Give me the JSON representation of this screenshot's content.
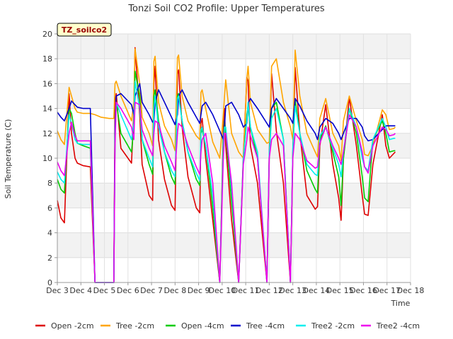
{
  "chart_data": {
    "type": "line",
    "title": "Tonzi Soil CO2 Profile: Upper Temperatures",
    "xlabel": "Time",
    "ylabel": "Soil Temperature (C)",
    "site_label": "TZ_soilco2",
    "ylim": [
      0,
      20
    ],
    "yticks": [
      0,
      2,
      4,
      6,
      8,
      10,
      12,
      14,
      16,
      18,
      20
    ],
    "xlim": [
      3,
      18
    ],
    "xtick_values": [
      3,
      4,
      5,
      6,
      7,
      8,
      9,
      10,
      11,
      12,
      13,
      14,
      15,
      16,
      17,
      18
    ],
    "xtick_labels": [
      "Dec 3",
      "Dec 4",
      "Dec 5",
      "Dec 6",
      "Dec 7",
      "Dec 8",
      "Dec 9",
      "Dec 10",
      "Dec 11",
      "Dec 12",
      "Dec 13",
      "Dec 14",
      "Dec 15",
      "Dec 16",
      "Dec 17",
      "Dec 18"
    ],
    "grid": true,
    "band_background": true,
    "legend_position": "bottom",
    "series": [
      {
        "name": "Open -2cm",
        "color": "#dd0000",
        "x": [
          3.0,
          3.15,
          3.3,
          3.5,
          3.6,
          3.75,
          3.85,
          4.1,
          4.4,
          4.6,
          4.85,
          5.2,
          5.4,
          5.45,
          5.5,
          5.7,
          6.15,
          6.25,
          6.3,
          6.5,
          6.6,
          6.9,
          7.05,
          7.1,
          7.15,
          7.3,
          7.55,
          7.85,
          8.0,
          8.1,
          8.15,
          8.3,
          8.55,
          8.9,
          9.05,
          9.1,
          9.15,
          9.3,
          9.6,
          9.9,
          10.05,
          10.1,
          10.15,
          10.4,
          10.7,
          10.9,
          11.05,
          11.1,
          11.2,
          11.5,
          11.9,
          12.0,
          12.1,
          12.3,
          12.6,
          12.9,
          13.0,
          13.1,
          13.3,
          13.6,
          13.95,
          14.05,
          14.15,
          14.4,
          14.7,
          14.95,
          15.05,
          15.15,
          15.4,
          15.7,
          15.95,
          16.05,
          16.2,
          16.4,
          16.8,
          16.95,
          17.1,
          17.3,
          17.35
        ],
        "values": [
          6.6,
          5.2,
          4.8,
          15.2,
          12.0,
          10.0,
          9.6,
          9.4,
          9.3,
          0,
          0,
          0,
          0,
          14.5,
          15.2,
          10.8,
          9.6,
          13.8,
          18.9,
          13.5,
          9.5,
          7.0,
          6.6,
          16.0,
          17.4,
          11.5,
          8.3,
          6.2,
          5.8,
          16.8,
          17.1,
          12.5,
          8.5,
          6.0,
          5.6,
          12.8,
          13.2,
          10.0,
          5.0,
          0,
          12.2,
          14.0,
          11.0,
          5.0,
          0,
          10.2,
          16.5,
          16.2,
          11.0,
          8.0,
          0,
          10.5,
          16.8,
          12.2,
          8.0,
          0,
          10.7,
          17.3,
          12.0,
          7.0,
          5.9,
          6.1,
          11.0,
          14.3,
          9.5,
          6.8,
          5.0,
          10.0,
          14.9,
          11.0,
          7.0,
          5.5,
          5.4,
          9.5,
          13.5,
          11.0,
          10.0,
          10.4,
          10.5
        ]
      },
      {
        "name": "Tree -2cm",
        "color": "#ffa500",
        "x": [
          3.0,
          3.15,
          3.3,
          3.5,
          3.6,
          3.75,
          3.85,
          4.1,
          4.4,
          4.6,
          4.85,
          5.2,
          5.4,
          5.45,
          5.5,
          5.7,
          6.15,
          6.25,
          6.3,
          6.5,
          6.6,
          6.9,
          7.05,
          7.1,
          7.15,
          7.3,
          7.55,
          7.85,
          8.0,
          8.1,
          8.15,
          8.3,
          8.55,
          8.9,
          9.05,
          9.1,
          9.15,
          9.3,
          9.6,
          9.9,
          10.05,
          10.1,
          10.15,
          10.4,
          10.7,
          10.9,
          11.05,
          11.1,
          11.2,
          11.5,
          11.9,
          12.0,
          12.1,
          12.3,
          12.6,
          12.9,
          13.0,
          13.1,
          13.3,
          13.6,
          13.95,
          14.05,
          14.15,
          14.4,
          14.7,
          14.95,
          15.05,
          15.15,
          15.4,
          15.7,
          15.95,
          16.05,
          16.2,
          16.4,
          16.8,
          16.95,
          17.1,
          17.3,
          17.35
        ],
        "values": [
          12.2,
          11.5,
          11.1,
          15.7,
          15.0,
          14.0,
          13.7,
          13.6,
          13.6,
          13.5,
          13.3,
          13.2,
          13.2,
          16.0,
          16.2,
          15.0,
          13.0,
          14.5,
          18.8,
          16.0,
          13.3,
          12.0,
          11.0,
          17.8,
          18.2,
          14.5,
          12.6,
          11.5,
          10.6,
          18.1,
          18.3,
          15.0,
          13.0,
          11.8,
          11.5,
          15.3,
          15.5,
          14.0,
          11.3,
          10.0,
          13.5,
          15.0,
          16.3,
          12.0,
          10.5,
          10.0,
          16.4,
          17.4,
          14.5,
          12.3,
          11.2,
          11.3,
          17.4,
          18.0,
          14.5,
          12.5,
          11.5,
          18.7,
          15.0,
          12.0,
          10.5,
          10.1,
          13.2,
          14.8,
          12.0,
          11.0,
          9.8,
          13.0,
          15.0,
          13.0,
          11.5,
          10.3,
          10.2,
          11.0,
          13.9,
          13.5,
          12.3,
          12.4,
          12.5
        ]
      },
      {
        "name": "Open -4cm",
        "color": "#00cc00",
        "x": [
          3.0,
          3.15,
          3.3,
          3.5,
          3.6,
          3.75,
          3.85,
          4.1,
          4.4,
          4.6,
          4.85,
          5.2,
          5.4,
          5.45,
          5.5,
          5.7,
          6.15,
          6.25,
          6.3,
          6.5,
          6.6,
          6.9,
          7.05,
          7.1,
          7.15,
          7.3,
          7.55,
          7.85,
          8.0,
          8.1,
          8.15,
          8.3,
          8.55,
          8.9,
          9.05,
          9.1,
          9.15,
          9.3,
          9.6,
          9.9,
          10.05,
          10.1,
          10.15,
          10.4,
          10.7,
          10.9,
          11.05,
          11.1,
          11.2,
          11.5,
          11.9,
          12.0,
          12.1,
          12.3,
          12.6,
          12.9,
          13.0,
          13.1,
          13.3,
          13.6,
          13.95,
          14.05,
          14.15,
          14.4,
          14.7,
          14.95,
          15.05,
          15.15,
          15.4,
          15.7,
          15.95,
          16.05,
          16.2,
          16.4,
          16.8,
          16.95,
          17.1,
          17.3,
          17.35
        ],
        "values": [
          8.3,
          7.5,
          7.2,
          14.0,
          13.6,
          12.0,
          11.2,
          11.0,
          10.8,
          0,
          0,
          0,
          0,
          11.5,
          14.5,
          12.0,
          10.5,
          12.5,
          17.0,
          15.0,
          11.5,
          9.5,
          8.7,
          15.0,
          15.5,
          13.0,
          10.5,
          8.5,
          7.9,
          15.0,
          15.2,
          13.0,
          10.5,
          8.3,
          7.8,
          12.0,
          12.3,
          11.0,
          6.0,
          0,
          11.5,
          13.0,
          12.0,
          6.5,
          0,
          9.8,
          13.5,
          14.2,
          12.5,
          10.0,
          0,
          10.0,
          14.0,
          14.5,
          11.5,
          0,
          10.5,
          14.7,
          12.0,
          9.0,
          7.5,
          7.2,
          11.5,
          12.6,
          10.5,
          8.5,
          6.2,
          10.0,
          14.0,
          12.0,
          8.5,
          6.8,
          6.5,
          11.5,
          13.0,
          12.0,
          10.5,
          10.6,
          10.6
        ]
      },
      {
        "name": "Tree -4cm",
        "color": "#0000cc",
        "x": [
          3.0,
          3.15,
          3.3,
          3.5,
          3.6,
          3.75,
          3.85,
          4.1,
          4.4,
          4.6,
          4.85,
          5.2,
          5.4,
          5.45,
          5.5,
          5.7,
          6.15,
          6.25,
          6.3,
          6.5,
          6.6,
          6.9,
          7.05,
          7.1,
          7.15,
          7.3,
          7.55,
          7.85,
          8.0,
          8.1,
          8.15,
          8.3,
          8.55,
          8.9,
          9.05,
          9.1,
          9.15,
          9.3,
          9.6,
          9.9,
          10.05,
          10.1,
          10.15,
          10.4,
          10.7,
          10.9,
          11.05,
          11.1,
          11.2,
          11.5,
          11.9,
          12.0,
          12.1,
          12.3,
          12.6,
          12.9,
          13.0,
          13.1,
          13.3,
          13.6,
          13.95,
          14.05,
          14.15,
          14.4,
          14.7,
          14.95,
          15.05,
          15.15,
          15.4,
          15.7,
          15.95,
          16.05,
          16.2,
          16.4,
          16.8,
          16.95,
          17.1,
          17.3,
          17.35
        ],
        "values": [
          13.7,
          13.3,
          13.0,
          14.0,
          14.6,
          14.3,
          14.1,
          14.0,
          14.0,
          0,
          0,
          0,
          0,
          12.5,
          15.0,
          15.2,
          14.3,
          13.5,
          15.0,
          16.0,
          14.5,
          13.5,
          12.9,
          13.0,
          14.5,
          15.5,
          14.5,
          13.3,
          12.7,
          13.5,
          15.0,
          15.5,
          14.5,
          13.3,
          12.8,
          13.5,
          14.2,
          14.5,
          13.5,
          12.2,
          11.5,
          12.5,
          14.2,
          14.5,
          13.5,
          12.5,
          12.8,
          14.4,
          14.8,
          14.0,
          12.8,
          12.5,
          14.0,
          14.8,
          14.0,
          13.2,
          12.8,
          14.8,
          14.2,
          13.0,
          12.0,
          11.5,
          12.5,
          13.2,
          12.8,
          12.0,
          11.5,
          12.0,
          13.2,
          13.2,
          12.5,
          11.8,
          11.4,
          11.5,
          12.3,
          12.6,
          12.6,
          12.6,
          12.6
        ]
      },
      {
        "name": "Tree2 -2cm",
        "color": "#00eeee",
        "x": [
          3.0,
          3.15,
          3.3,
          3.5,
          3.6,
          3.75,
          3.85,
          4.1,
          4.4,
          4.6,
          4.85,
          5.2,
          5.4,
          5.45,
          5.5,
          5.7,
          6.15,
          6.25,
          6.3,
          6.5,
          6.6,
          6.9,
          7.05,
          7.1,
          7.15,
          7.3,
          7.55,
          7.85,
          8.0,
          8.1,
          8.15,
          8.3,
          8.55,
          8.9,
          9.05,
          9.1,
          9.15,
          9.3,
          9.6,
          9.9,
          10.05,
          10.1,
          10.15,
          10.4,
          10.7,
          10.9,
          11.05,
          11.1,
          11.2,
          11.5,
          11.9,
          12.0,
          12.1,
          12.3,
          12.6,
          12.9,
          13.0,
          13.1,
          13.3,
          13.6,
          13.95,
          14.05,
          14.15,
          14.4,
          14.7,
          14.95,
          15.05,
          15.15,
          15.4,
          15.7,
          15.95,
          16.05,
          16.2,
          16.4,
          16.8,
          16.95,
          17.1,
          17.3,
          17.35
        ],
        "values": [
          8.9,
          8.3,
          8.0,
          13.5,
          12.8,
          11.5,
          11.2,
          11.1,
          11.1,
          0,
          0,
          0,
          0,
          11.5,
          14.5,
          13.5,
          11.5,
          12.8,
          16.2,
          14.0,
          11.5,
          10.0,
          9.3,
          14.0,
          15.0,
          12.5,
          10.5,
          9.0,
          8.5,
          14.8,
          15.0,
          13.0,
          10.5,
          8.8,
          8.2,
          12.3,
          12.5,
          11.0,
          7.0,
          0,
          11.0,
          12.5,
          12.5,
          7.5,
          0,
          10.0,
          13.0,
          14.5,
          12.5,
          10.5,
          0,
          10.5,
          13.2,
          14.0,
          11.5,
          0,
          10.8,
          14.2,
          12.0,
          9.5,
          8.7,
          8.6,
          11.8,
          12.5,
          10.8,
          9.5,
          8.5,
          10.5,
          14.0,
          12.5,
          10.0,
          9.3,
          9.0,
          11.5,
          13.2,
          12.5,
          11.5,
          11.6,
          11.6
        ]
      },
      {
        "name": "Tree2 -4cm",
        "color": "#ee00ee",
        "x": [
          3.0,
          3.15,
          3.3,
          3.5,
          3.6,
          3.75,
          3.85,
          4.1,
          4.4,
          4.6,
          4.85,
          5.2,
          5.4,
          5.45,
          5.5,
          5.7,
          6.15,
          6.25,
          6.3,
          6.5,
          6.6,
          6.9,
          7.05,
          7.1,
          7.15,
          7.3,
          7.55,
          7.85,
          8.0,
          8.1,
          8.15,
          8.3,
          8.55,
          8.9,
          9.05,
          9.1,
          9.15,
          9.3,
          9.6,
          9.9,
          10.05,
          10.1,
          10.15,
          10.4,
          10.7,
          10.9,
          11.05,
          11.1,
          11.2,
          11.5,
          11.9,
          12.0,
          12.1,
          12.3,
          12.6,
          12.9,
          13.0,
          13.1,
          13.3,
          13.6,
          13.95,
          14.05,
          14.15,
          14.4,
          14.7,
          14.95,
          15.05,
          15.15,
          15.4,
          15.7,
          15.95,
          16.05,
          16.2,
          16.4,
          16.8,
          16.95,
          17.1,
          17.3,
          17.35
        ],
        "values": [
          9.7,
          9.0,
          8.6,
          12.0,
          12.9,
          11.8,
          11.4,
          11.4,
          11.4,
          0,
          0,
          0,
          0,
          10.8,
          14.5,
          14.0,
          12.5,
          11.5,
          14.5,
          14.3,
          12.3,
          10.8,
          10.2,
          12.0,
          13.0,
          12.8,
          11.0,
          9.7,
          9.0,
          12.0,
          12.8,
          12.5,
          11.0,
          9.3,
          8.7,
          10.5,
          11.5,
          12.0,
          8.0,
          0,
          10.0,
          12.0,
          12.0,
          8.0,
          0,
          9.5,
          11.5,
          12.5,
          11.8,
          10.0,
          0,
          10.0,
          11.5,
          12.0,
          11.0,
          0,
          10.0,
          12.0,
          11.5,
          9.8,
          9.2,
          9.3,
          11.2,
          12.5,
          11.0,
          10.0,
          9.5,
          10.5,
          13.5,
          12.5,
          10.5,
          9.3,
          8.8,
          11.0,
          12.5,
          12.3,
          11.8,
          11.9,
          12.0
        ]
      }
    ]
  }
}
